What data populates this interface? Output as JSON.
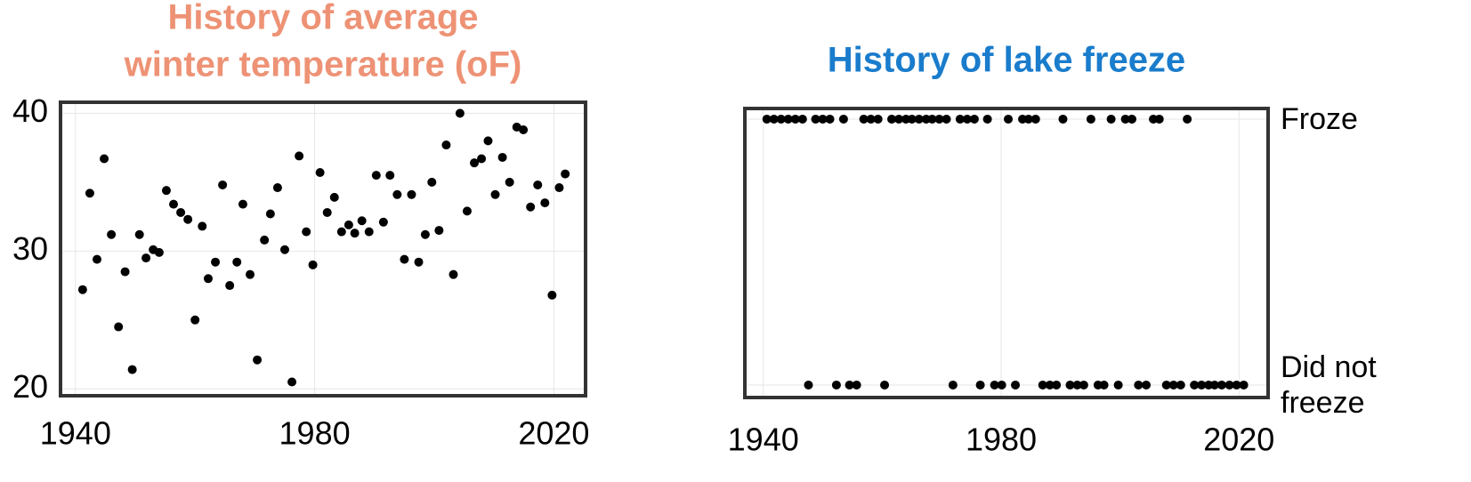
{
  "chart_data": [
    {
      "type": "scatter",
      "title": [
        "History of average",
        "winter temperature (oF)"
      ],
      "title_color": "#ee9275",
      "xlim": [
        1937.5,
        2025.3
      ],
      "ylim": [
        19.5,
        40.8
      ],
      "xticks": [
        1940,
        1980,
        2020
      ],
      "yticks": [
        20,
        30,
        40
      ],
      "grid": true,
      "series": [
        {
          "color": "#000000",
          "x": [
            1941.2,
            1942.4,
            1943.6,
            1944.8,
            1946.0,
            1947.2,
            1948.3,
            1949.5,
            1950.7,
            1951.8,
            1953.0,
            1954.0,
            1955.2,
            1956.4,
            1957.6,
            1958.8,
            1960.0,
            1961.2,
            1962.2,
            1963.4,
            1964.6,
            1965.8,
            1967.0,
            1968.0,
            1969.2,
            1970.4,
            1971.6,
            1972.6,
            1973.8,
            1975.0,
            1976.2,
            1977.4,
            1978.6,
            1979.7,
            1980.9,
            1982.1,
            1983.3,
            1984.5,
            1985.7,
            1986.7,
            1987.9,
            1989.1,
            1990.3,
            1991.5,
            1992.6,
            1993.8,
            1995.0,
            1996.2,
            1997.4,
            1998.5,
            1999.6,
            2000.8,
            2002.0,
            2003.2,
            2004.3,
            2005.5,
            2006.7,
            2007.9,
            2009.0,
            2010.2,
            2011.4,
            2012.6,
            2013.8,
            2014.9,
            2016.1,
            2017.3,
            2018.5,
            2019.7,
            2020.9,
            2021.9
          ],
          "values": [
            27.2,
            34.2,
            29.4,
            36.7,
            31.2,
            24.5,
            28.5,
            21.4,
            31.2,
            29.5,
            30.1,
            29.9,
            34.4,
            33.4,
            32.8,
            32.3,
            25.0,
            31.8,
            28.0,
            29.2,
            34.8,
            27.5,
            29.2,
            33.4,
            28.3,
            22.1,
            30.8,
            32.7,
            34.6,
            30.1,
            20.5,
            36.9,
            31.4,
            29.0,
            35.7,
            32.8,
            33.9,
            31.4,
            31.9,
            31.3,
            32.2,
            31.4,
            35.5,
            32.1,
            35.5,
            34.1,
            29.4,
            34.1,
            29.2,
            31.2,
            35.0,
            31.5,
            37.7,
            28.3,
            40.0,
            32.9,
            36.4,
            36.7,
            38.0,
            34.1,
            36.8,
            35.0,
            39.0,
            38.8,
            33.2,
            34.8,
            33.5,
            26.8,
            34.6,
            35.6
          ]
        }
      ]
    },
    {
      "type": "scatter",
      "title": [
        "History of lake freeze"
      ],
      "title_color": "#1a7ccc",
      "xlim": [
        1936.9,
        2024.9
      ],
      "ylim": [
        -0.047,
        1.04
      ],
      "xticks": [
        1940,
        1980,
        2020
      ],
      "yticks": [
        {
          "value": 0,
          "label": "Did not freeze"
        },
        {
          "value": 1,
          "label": "Froze"
        }
      ],
      "grid": true,
      "series": [
        {
          "color": "#000000",
          "x": [
            1940.6,
            1941.8,
            1943.0,
            1944.2,
            1945.4,
            1946.6,
            1948.8,
            1950.0,
            1951.2,
            1953.5,
            1956.9,
            1958.1,
            1959.3,
            1961.6,
            1962.8,
            1964.0,
            1965.0,
            1966.2,
            1967.4,
            1968.4,
            1969.6,
            1970.8,
            1973.1,
            1974.3,
            1975.5,
            1977.7,
            1981.2,
            1983.6,
            1984.6,
            1985.8,
            1990.4,
            1995.1,
            1998.5,
            2000.9,
            2002.0,
            2005.6,
            2006.6,
            2011.3,
            1947.6,
            1952.3,
            1954.5,
            1955.7,
            1960.4,
            1971.9,
            1976.5,
            1978.9,
            1980.1,
            1982.4,
            1987.0,
            1988.2,
            1989.3,
            1991.6,
            1992.8,
            1993.9,
            1996.3,
            1997.3,
            1999.7,
            2003.1,
            2004.4,
            2007.8,
            2009.0,
            2010.2,
            2012.5,
            2013.7,
            2014.9,
            2015.9,
            2017.1,
            2018.4,
            2019.6,
            2020.8
          ],
          "values": [
            1,
            1,
            1,
            1,
            1,
            1,
            1,
            1,
            1,
            1,
            1,
            1,
            1,
            1,
            1,
            1,
            1,
            1,
            1,
            1,
            1,
            1,
            1,
            1,
            1,
            1,
            1,
            1,
            1,
            1,
            1,
            1,
            1,
            1,
            1,
            1,
            1,
            1,
            0,
            0,
            0,
            0,
            0,
            0,
            0,
            0,
            0,
            0,
            0,
            0,
            0,
            0,
            0,
            0,
            0,
            0,
            0,
            0,
            0,
            0,
            0,
            0,
            0,
            0,
            0,
            0,
            0,
            0,
            0,
            0
          ]
        }
      ]
    }
  ]
}
